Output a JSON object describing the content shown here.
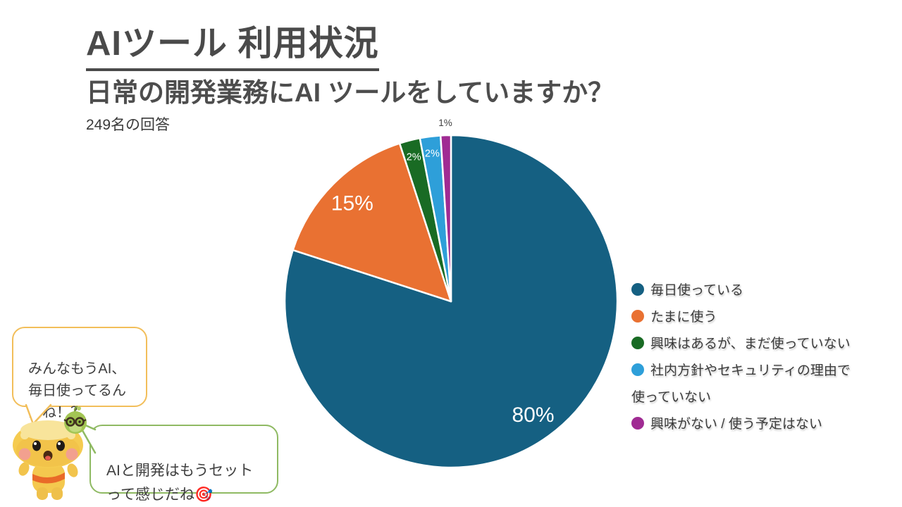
{
  "header": {
    "title": "AIツール 利用状況",
    "subtitle": "日常の開発業務にAI ツールをしていますか？",
    "response_count": "249名の回答"
  },
  "chart_data": {
    "type": "pie",
    "title": "AIツール 利用状況",
    "question": "日常の開発業務にAI ツールをしていますか？",
    "sample_size_label": "249名の回答",
    "categories": [
      "毎日使っている",
      "たまに使う",
      "興味はあるが、まだ使っていない",
      "社内方針やセキュリティの理由で使っていない",
      "興味がない / 使う予定はない"
    ],
    "values": [
      80,
      15,
      2,
      2,
      1
    ],
    "labels": [
      "80%",
      "15%",
      "2%",
      "2%",
      "1%"
    ],
    "colors": [
      "#156082",
      "#E97132",
      "#196B24",
      "#2E9FD9",
      "#A02B93"
    ],
    "start_angle_deg": 0,
    "direction": "clockwise",
    "legend_position": "right",
    "inside_label_color": "#ffffff",
    "outside_label_color": "#404040"
  },
  "speech_bubbles": {
    "top": "みんなもうAI、\n毎日使ってるん\nだね！？",
    "bottom": "AIと開発はもうセット\nって感じだね🎯"
  },
  "ui_colors": {
    "bubble_top_border": "#F2BE5A",
    "bubble_bottom_border": "#8FBA63",
    "slice_separator": "#ffffff"
  }
}
